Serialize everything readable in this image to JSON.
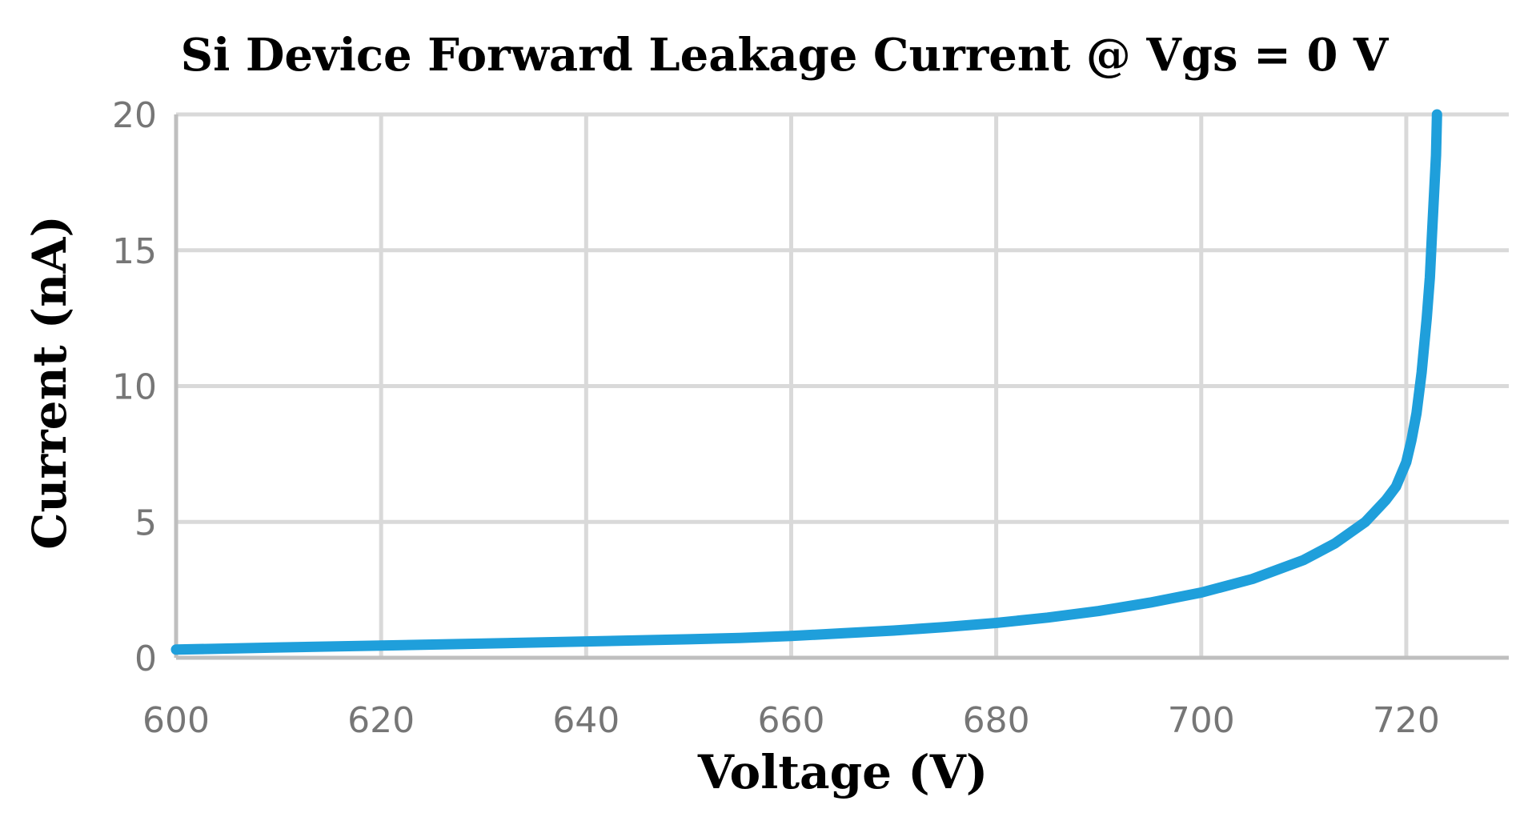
{
  "chart_data": {
    "type": "line",
    "title": "Si Device Forward Leakage Current @ Vgs = 0 V",
    "xlabel": "Voltage (V)",
    "ylabel": "Current (nA)",
    "xlim": [
      600,
      730
    ],
    "ylim": [
      0,
      20
    ],
    "x_ticks": [
      "600",
      "620",
      "640",
      "660",
      "680",
      "700",
      "720"
    ],
    "y_ticks": [
      "0",
      "5",
      "10",
      "15",
      "20"
    ],
    "grid": true,
    "legend": "none",
    "series": [
      {
        "color": "#1f9fdb",
        "x": [
          600,
          610,
          620,
          630,
          640,
          650,
          655,
          660,
          665,
          670,
          675,
          680,
          685,
          690,
          695,
          700,
          705,
          710,
          713,
          716,
          718,
          719,
          720,
          720.5,
          721,
          721.5,
          722,
          722.3,
          722.5,
          722.7,
          722.9,
          723
        ],
        "y": [
          0.3,
          0.38,
          0.45,
          0.52,
          0.6,
          0.68,
          0.73,
          0.8,
          0.9,
          1.0,
          1.13,
          1.28,
          1.48,
          1.72,
          2.03,
          2.4,
          2.9,
          3.6,
          4.2,
          5.0,
          5.8,
          6.3,
          7.2,
          8.0,
          9.0,
          10.5,
          12.5,
          14.0,
          15.5,
          17.0,
          18.5,
          20.0
        ]
      }
    ]
  }
}
